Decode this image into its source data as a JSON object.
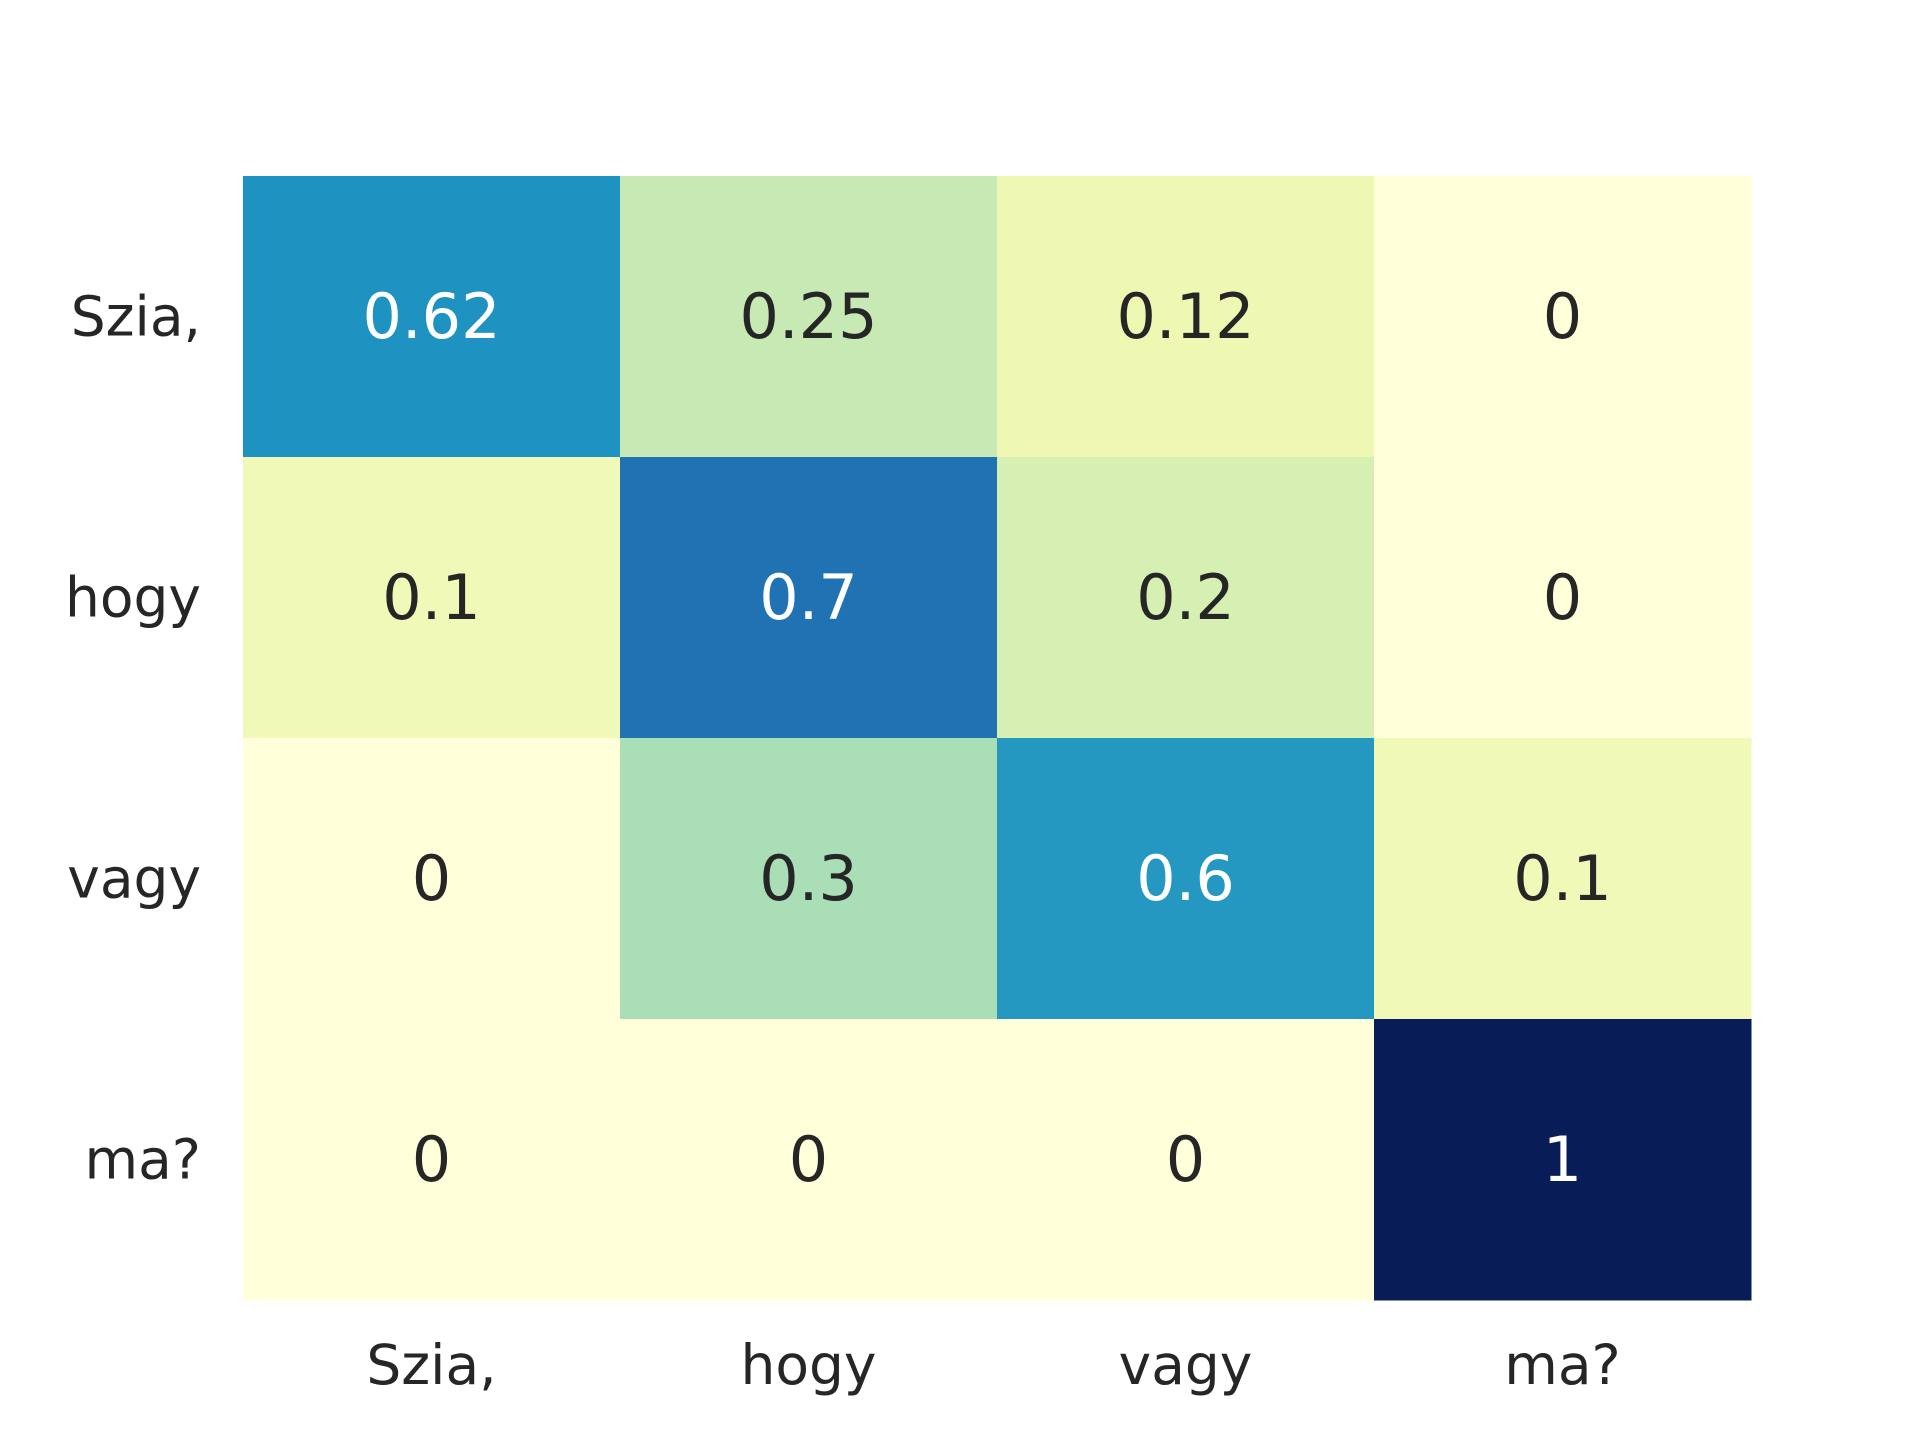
{
  "chart_data": {
    "type": "heatmap",
    "title": "",
    "xlabel": "",
    "ylabel": "",
    "x_categories": [
      "Szia,",
      "hogy",
      "vagy",
      "ma?"
    ],
    "y_categories": [
      "Szia,",
      "hogy",
      "vagy",
      "ma?"
    ],
    "values": [
      [
        0.62,
        0.25,
        0.12,
        0
      ],
      [
        0.1,
        0.7,
        0.2,
        0
      ],
      [
        0,
        0.3,
        0.6,
        0.1
      ],
      [
        0,
        0,
        0,
        1
      ]
    ],
    "value_range": [
      0,
      1
    ],
    "colormap": "YlGnBu",
    "colorbar": false,
    "grid": false,
    "annotations": true,
    "annotation_colors": {
      "dark": "#262626",
      "light": "#ffffff"
    }
  }
}
